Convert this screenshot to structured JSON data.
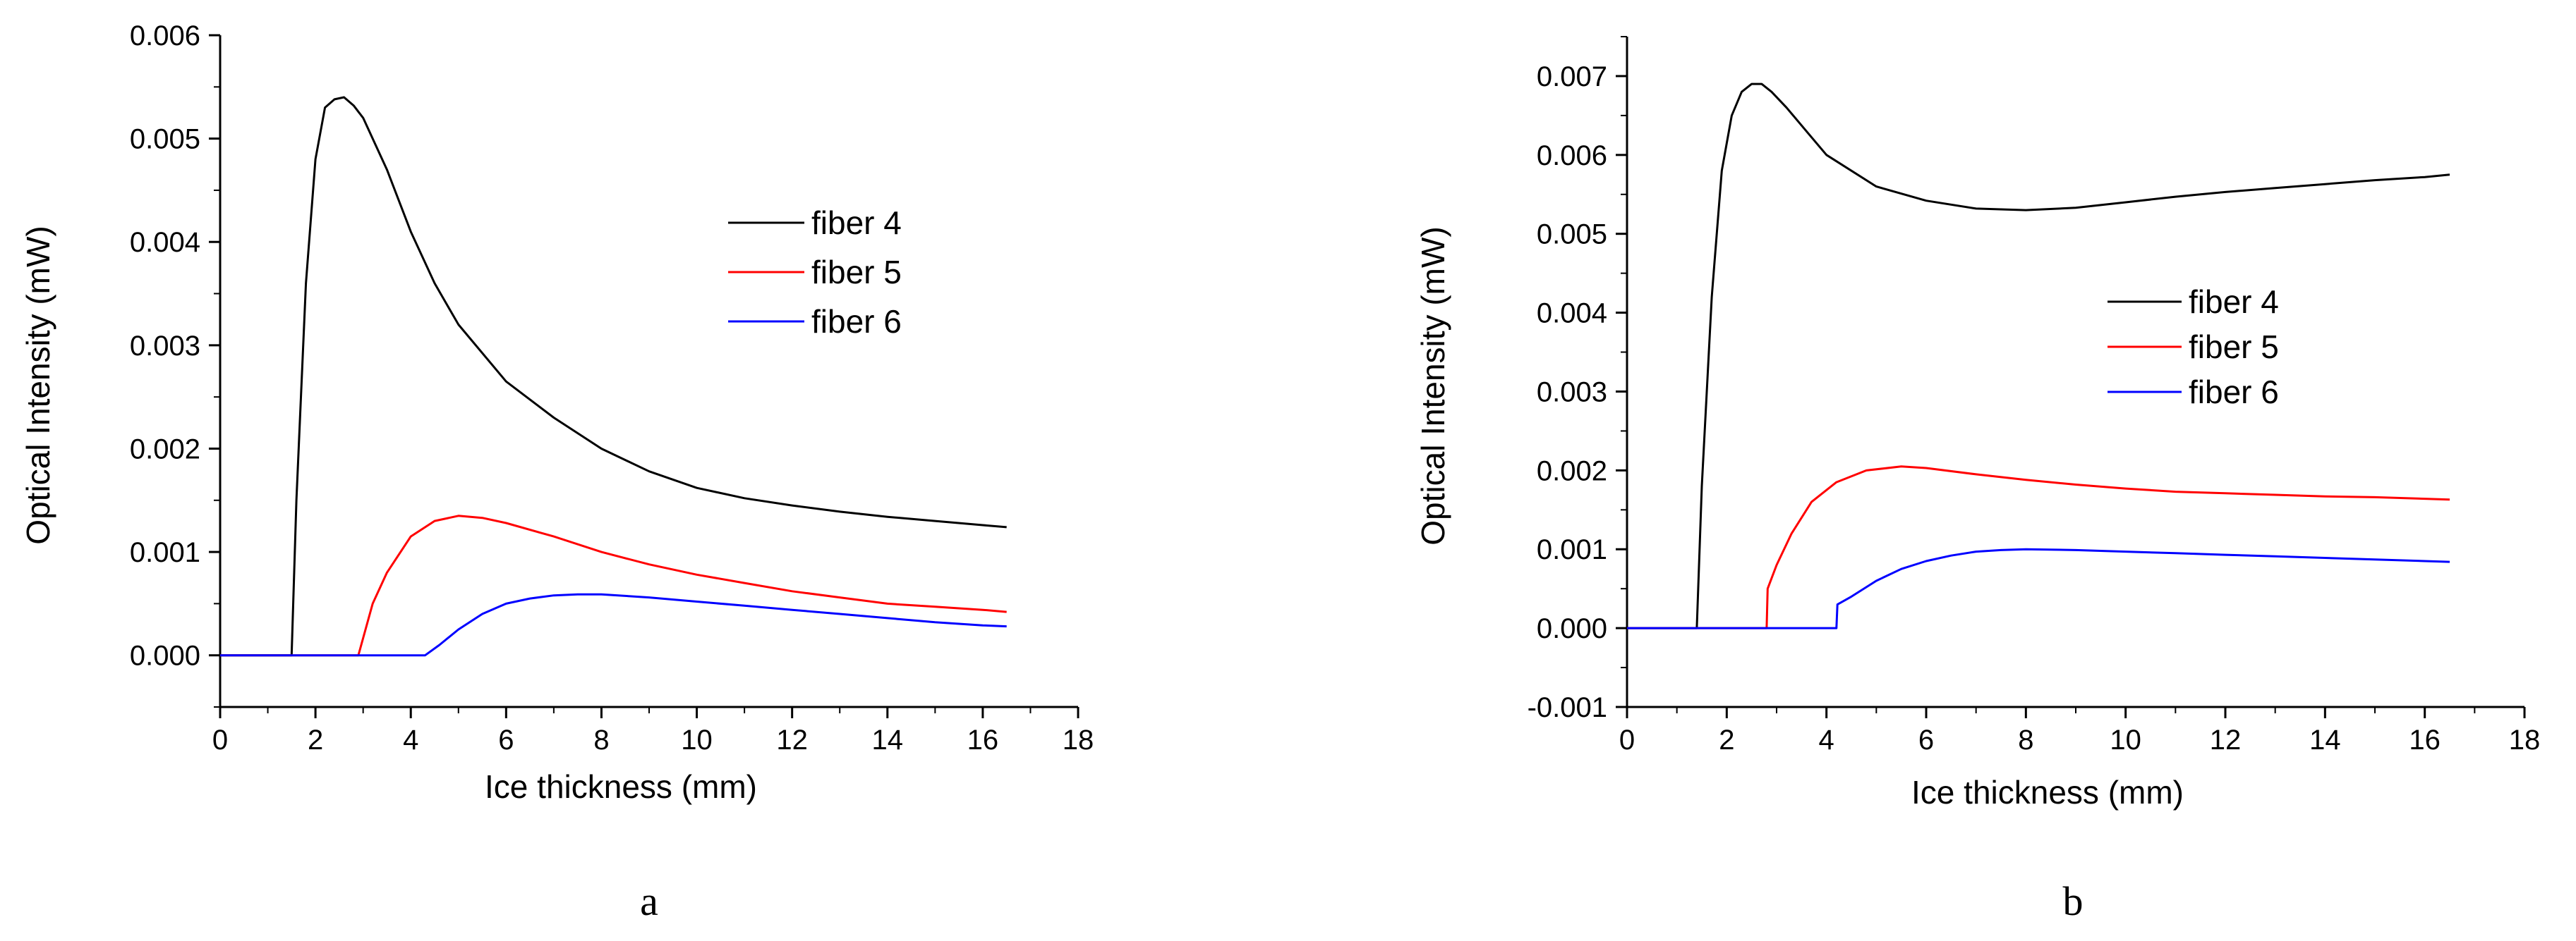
{
  "chart_data": [
    {
      "type": "line",
      "panel_label": "a",
      "xlabel": "Ice thickness (mm)",
      "ylabel": "Optical Intensity (mW)",
      "xlim": [
        0,
        18
      ],
      "ylim": [
        -0.0005,
        0.006
      ],
      "x_ticks": [
        0,
        2,
        4,
        6,
        8,
        10,
        12,
        14,
        16,
        18
      ],
      "x_tick_labels": [
        "0",
        "2",
        "4",
        "6",
        "8",
        "10",
        "12",
        "14",
        "16",
        "18"
      ],
      "y_ticks": [
        0,
        0.001,
        0.002,
        0.003,
        0.004,
        0.005,
        0.006
      ],
      "y_tick_labels": [
        "0.000",
        "0.001",
        "0.002",
        "0.003",
        "0.004",
        "0.005",
        "0.006"
      ],
      "legend_position": "upper-right",
      "series": [
        {
          "name": "fiber 4",
          "color": "#000000",
          "x": [
            0,
            1.5,
            1.6,
            1.8,
            2.0,
            2.2,
            2.4,
            2.6,
            2.8,
            3.0,
            3.5,
            4.0,
            4.5,
            5.0,
            6.0,
            7.0,
            8.0,
            9.0,
            10.0,
            11.0,
            12.0,
            13.0,
            14.0,
            15.0,
            16.0,
            16.5
          ],
          "y": [
            0,
            0,
            0.0015,
            0.0036,
            0.0048,
            0.0053,
            0.00538,
            0.0054,
            0.00532,
            0.0052,
            0.0047,
            0.0041,
            0.0036,
            0.0032,
            0.00265,
            0.0023,
            0.002,
            0.00178,
            0.00162,
            0.00152,
            0.00145,
            0.00139,
            0.00134,
            0.0013,
            0.00126,
            0.00124
          ]
        },
        {
          "name": "fiber 5",
          "color": "#ff0000",
          "x": [
            0,
            2.9,
            3.2,
            3.5,
            4.0,
            4.5,
            5.0,
            5.5,
            6.0,
            7.0,
            8.0,
            9.0,
            10.0,
            11.0,
            12.0,
            13.0,
            14.0,
            15.0,
            16.0,
            16.5
          ],
          "y": [
            0,
            0,
            0.0005,
            0.0008,
            0.00115,
            0.0013,
            0.00135,
            0.00133,
            0.00128,
            0.00115,
            0.001,
            0.00088,
            0.00078,
            0.0007,
            0.00062,
            0.00056,
            0.0005,
            0.00047,
            0.00044,
            0.00042
          ]
        },
        {
          "name": "fiber 6",
          "color": "#0000ff",
          "x": [
            0,
            4.3,
            4.6,
            5.0,
            5.5,
            6.0,
            6.5,
            7.0,
            7.5,
            8.0,
            9.0,
            10.0,
            11.0,
            12.0,
            13.0,
            14.0,
            15.0,
            16.0,
            16.5
          ],
          "y": [
            0,
            0,
            0.0001,
            0.00025,
            0.0004,
            0.0005,
            0.00055,
            0.00058,
            0.00059,
            0.00059,
            0.00056,
            0.00052,
            0.00048,
            0.00044,
            0.0004,
            0.00036,
            0.00032,
            0.00029,
            0.00028
          ]
        }
      ]
    },
    {
      "type": "line",
      "panel_label": "b",
      "xlabel": "Ice thickness (mm)",
      "ylabel": "Optical Intensity (mW)",
      "xlim": [
        0,
        18
      ],
      "ylim": [
        -0.001,
        0.0075
      ],
      "x_ticks": [
        0,
        2,
        4,
        6,
        8,
        10,
        12,
        14,
        16,
        18
      ],
      "x_tick_labels": [
        "0",
        "2",
        "4",
        "6",
        "8",
        "10",
        "12",
        "14",
        "16",
        "18"
      ],
      "y_ticks": [
        -0.001,
        0,
        0.001,
        0.002,
        0.003,
        0.004,
        0.005,
        0.006,
        0.007
      ],
      "y_tick_labels": [
        "-0.001",
        "0.000",
        "0.001",
        "0.002",
        "0.003",
        "0.004",
        "0.005",
        "0.006",
        "0.007"
      ],
      "legend_position": "middle-right",
      "series": [
        {
          "name": "fiber 4",
          "color": "#000000",
          "x": [
            0,
            1.4,
            1.5,
            1.7,
            1.9,
            2.1,
            2.3,
            2.5,
            2.7,
            2.9,
            3.2,
            3.6,
            4.0,
            5.0,
            6.0,
            7.0,
            8.0,
            9.0,
            10.0,
            11.0,
            12.0,
            13.0,
            14.0,
            15.0,
            16.0,
            16.5
          ],
          "y": [
            0,
            0,
            0.0018,
            0.0042,
            0.0058,
            0.0065,
            0.0068,
            0.0069,
            0.0069,
            0.0068,
            0.0066,
            0.0063,
            0.006,
            0.0056,
            0.00542,
            0.00532,
            0.0053,
            0.00533,
            0.0054,
            0.00547,
            0.00553,
            0.00558,
            0.00563,
            0.00568,
            0.00572,
            0.00575
          ]
        },
        {
          "name": "fiber 5",
          "color": "#ff0000",
          "x": [
            0,
            2.8,
            2.82,
            3.0,
            3.3,
            3.7,
            4.2,
            4.8,
            5.5,
            6.0,
            7.0,
            8.0,
            9.0,
            10.0,
            11.0,
            12.0,
            13.0,
            14.0,
            15.0,
            16.0,
            16.5
          ],
          "y": [
            0,
            0,
            0.0005,
            0.0008,
            0.0012,
            0.0016,
            0.00185,
            0.002,
            0.00205,
            0.00203,
            0.00195,
            0.00188,
            0.00182,
            0.00177,
            0.00173,
            0.00171,
            0.00169,
            0.00167,
            0.00166,
            0.00164,
            0.00163
          ]
        },
        {
          "name": "fiber 6",
          "color": "#0000ff",
          "x": [
            0,
            4.2,
            4.22,
            4.5,
            5.0,
            5.5,
            6.0,
            6.5,
            7.0,
            7.5,
            8.0,
            9.0,
            10.0,
            11.0,
            12.0,
            13.0,
            14.0,
            15.0,
            16.0,
            16.5
          ],
          "y": [
            0,
            0,
            0.0003,
            0.0004,
            0.0006,
            0.00075,
            0.00085,
            0.00092,
            0.00097,
            0.00099,
            0.001,
            0.00099,
            0.00097,
            0.00095,
            0.00093,
            0.00091,
            0.00089,
            0.00087,
            0.00085,
            0.00084
          ]
        }
      ]
    }
  ]
}
